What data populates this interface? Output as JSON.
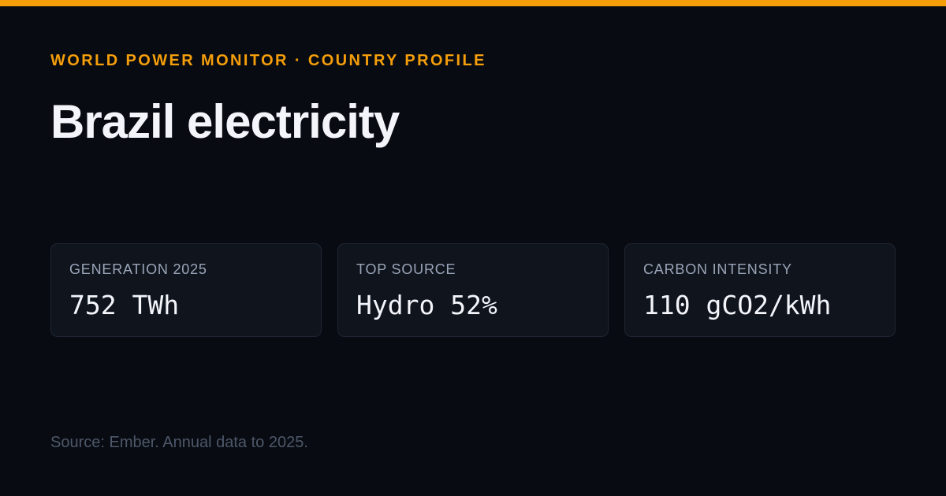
{
  "header": {
    "eyebrow": "WORLD POWER MONITOR · COUNTRY PROFILE",
    "title": "Brazil electricity"
  },
  "stats": [
    {
      "label": "GENERATION 2025",
      "value": "752 TWh"
    },
    {
      "label": "TOP SOURCE",
      "value": "Hydro 52%"
    },
    {
      "label": "CARBON INTENSITY",
      "value": "110 gCO2/kWh"
    }
  ],
  "footer": {
    "source": "Source: Ember. Annual data to 2025."
  },
  "colors": {
    "accent": "#f59e0b",
    "background": "#080b12",
    "card_background": "#0f141d",
    "card_border": "#1f2633",
    "title_text": "#f3f5fa",
    "label_text": "#9ba6b8",
    "muted_text": "#4e5869"
  }
}
